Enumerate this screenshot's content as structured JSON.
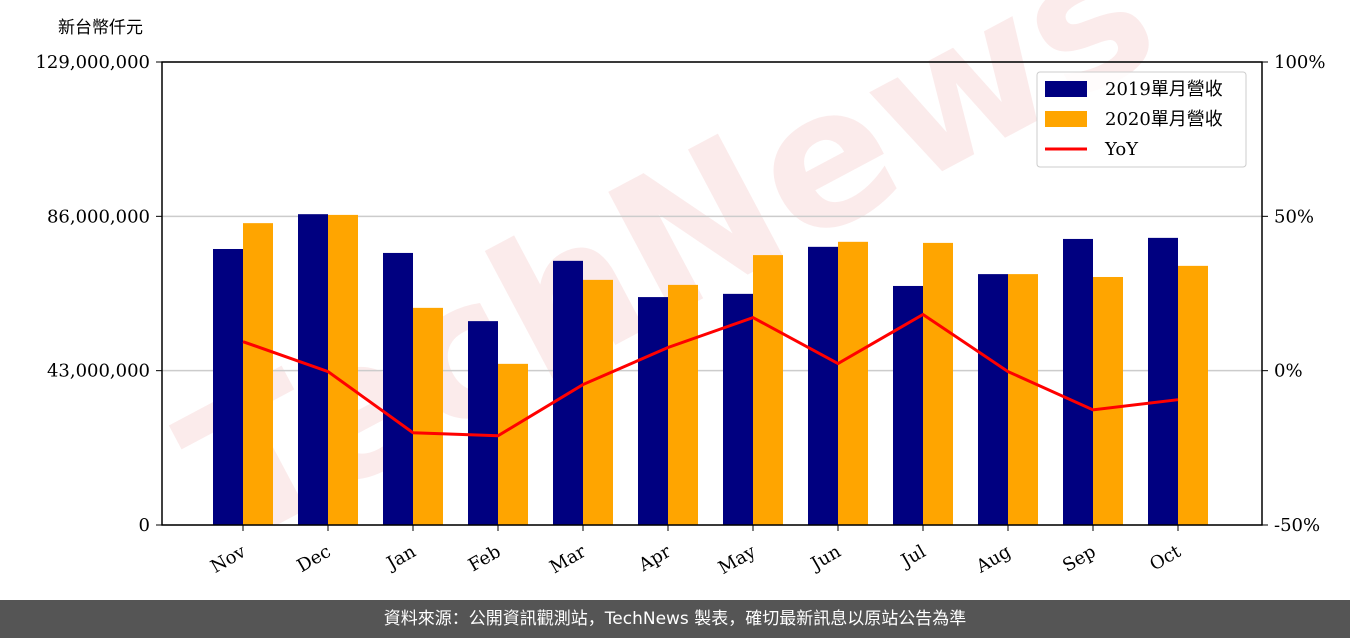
{
  "chart_data": {
    "type": "bar_line",
    "y_unit_label": "新台幣仟元",
    "watermark": "TechNews",
    "categories": [
      "Nov",
      "Dec",
      "Jan",
      "Feb",
      "Mar",
      "Apr",
      "May",
      "Jun",
      "Jul",
      "Aug",
      "Sep",
      "Oct"
    ],
    "series": [
      {
        "name": "2019單月營收",
        "color": "#000080",
        "type": "bar",
        "values": [
          76900000,
          86600000,
          75800000,
          56800000,
          73600000,
          63500000,
          64400000,
          77500000,
          66600000,
          69900000,
          79700000,
          80000000
        ]
      },
      {
        "name": "2020單月營收",
        "color": "#ffa500",
        "type": "bar",
        "values": [
          84100000,
          86400000,
          60500000,
          44900000,
          68300000,
          66900000,
          75200000,
          78900000,
          78600000,
          69900000,
          69100000,
          72200000
        ]
      },
      {
        "name": "YoY",
        "color": "#ff0000",
        "type": "line",
        "axis": "y2",
        "values": [
          9.4,
          -0.3,
          -20.1,
          -21.1,
          -4.5,
          7.5,
          17.2,
          2.3,
          18.2,
          -0.3,
          -12.7,
          -9.4
        ]
      }
    ],
    "ylim": [
      0,
      129000000
    ],
    "yticks": [
      0,
      {
        "value": 43000000,
        "label": "43,000,000"
      },
      {
        "value": 86000000,
        "label": "86,000,000"
      },
      {
        "value": 129000000,
        "label": "129,000,000"
      }
    ],
    "y2lim": [
      -50,
      100
    ],
    "y2ticks": [
      {
        "value": -50,
        "label": "-50%"
      },
      {
        "value": 0,
        "label": "0%"
      },
      {
        "value": 50,
        "label": "50%"
      },
      {
        "value": 100,
        "label": "100%"
      }
    ],
    "grid": true,
    "legend": "upper right",
    "footer": "資料來源：公開資訊觀測站，TechNews 製表，確切最新訊息以原站公告為準"
  }
}
